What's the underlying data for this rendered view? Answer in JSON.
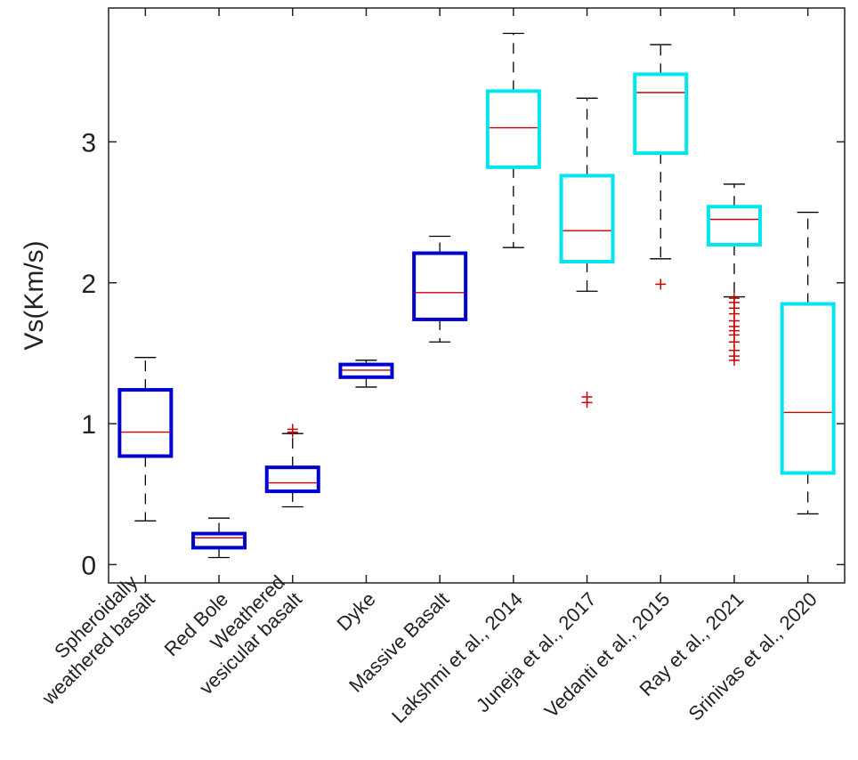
{
  "chart_data": {
    "type": "box",
    "title": "",
    "xlabel": "",
    "ylabel": "Vs(Km/s)",
    "ylim": [
      -0.13,
      3.95
    ],
    "yticks": [
      0,
      1,
      2,
      3
    ],
    "ytick_labels": [
      "0",
      "1",
      "2",
      "3"
    ],
    "grid": false,
    "categories": [
      [
        "Spheroidally",
        "weathered basalt"
      ],
      [
        "Red Bole"
      ],
      [
        "Weathered",
        "vesicular basalt"
      ],
      [
        "Dyke"
      ],
      [
        "Massive Basalt"
      ],
      [
        "Lakshmi et al., 2014"
      ],
      [
        "Juneja et al., 2017"
      ],
      [
        "Vedanti et al., 2015"
      ],
      [
        "Ray et al., 2021"
      ],
      [
        "Srinivas et al., 2020"
      ]
    ],
    "boxes": [
      {
        "lower_whisker": 0.31,
        "q1": 0.77,
        "median": 0.94,
        "q3": 1.24,
        "upper_whisker": 1.47,
        "outliers": [],
        "color": "#0000cc"
      },
      {
        "lower_whisker": 0.05,
        "q1": 0.12,
        "median": 0.19,
        "q3": 0.22,
        "upper_whisker": 0.33,
        "outliers": [],
        "color": "#0000cc"
      },
      {
        "lower_whisker": 0.41,
        "q1": 0.52,
        "median": 0.58,
        "q3": 0.69,
        "upper_whisker": 0.93,
        "outliers": [
          0.94,
          0.96
        ],
        "color": "#0000cc"
      },
      {
        "lower_whisker": 1.26,
        "q1": 1.33,
        "median": 1.38,
        "q3": 1.42,
        "upper_whisker": 1.45,
        "outliers": [],
        "color": "#0000cc"
      },
      {
        "lower_whisker": 1.58,
        "q1": 1.74,
        "median": 1.93,
        "q3": 2.21,
        "upper_whisker": 2.33,
        "outliers": [],
        "color": "#0000cc"
      },
      {
        "lower_whisker": 2.25,
        "q1": 2.82,
        "median": 3.1,
        "q3": 3.36,
        "upper_whisker": 3.77,
        "outliers": [],
        "color": "#00e5ee"
      },
      {
        "lower_whisker": 1.94,
        "q1": 2.15,
        "median": 2.37,
        "q3": 2.76,
        "upper_whisker": 3.31,
        "outliers": [
          1.15,
          1.19
        ],
        "color": "#00e5ee"
      },
      {
        "lower_whisker": 2.17,
        "q1": 2.92,
        "median": 3.35,
        "q3": 3.48,
        "upper_whisker": 3.69,
        "outliers": [
          1.99
        ],
        "color": "#00e5ee"
      },
      {
        "lower_whisker": 1.9,
        "q1": 2.27,
        "median": 2.45,
        "q3": 2.54,
        "upper_whisker": 2.7,
        "outliers": [
          1.45,
          1.48,
          1.52,
          1.58,
          1.63,
          1.66,
          1.69,
          1.73,
          1.78,
          1.82,
          1.86,
          1.89
        ],
        "color": "#00e5ee"
      },
      {
        "lower_whisker": 0.36,
        "q1": 0.65,
        "median": 1.08,
        "q3": 1.85,
        "upper_whisker": 2.5,
        "outliers": [],
        "color": "#00e5ee"
      }
    ],
    "median_color": "#cc0000",
    "whisker_color": "#000000",
    "outlier_color": "#cc0000"
  }
}
